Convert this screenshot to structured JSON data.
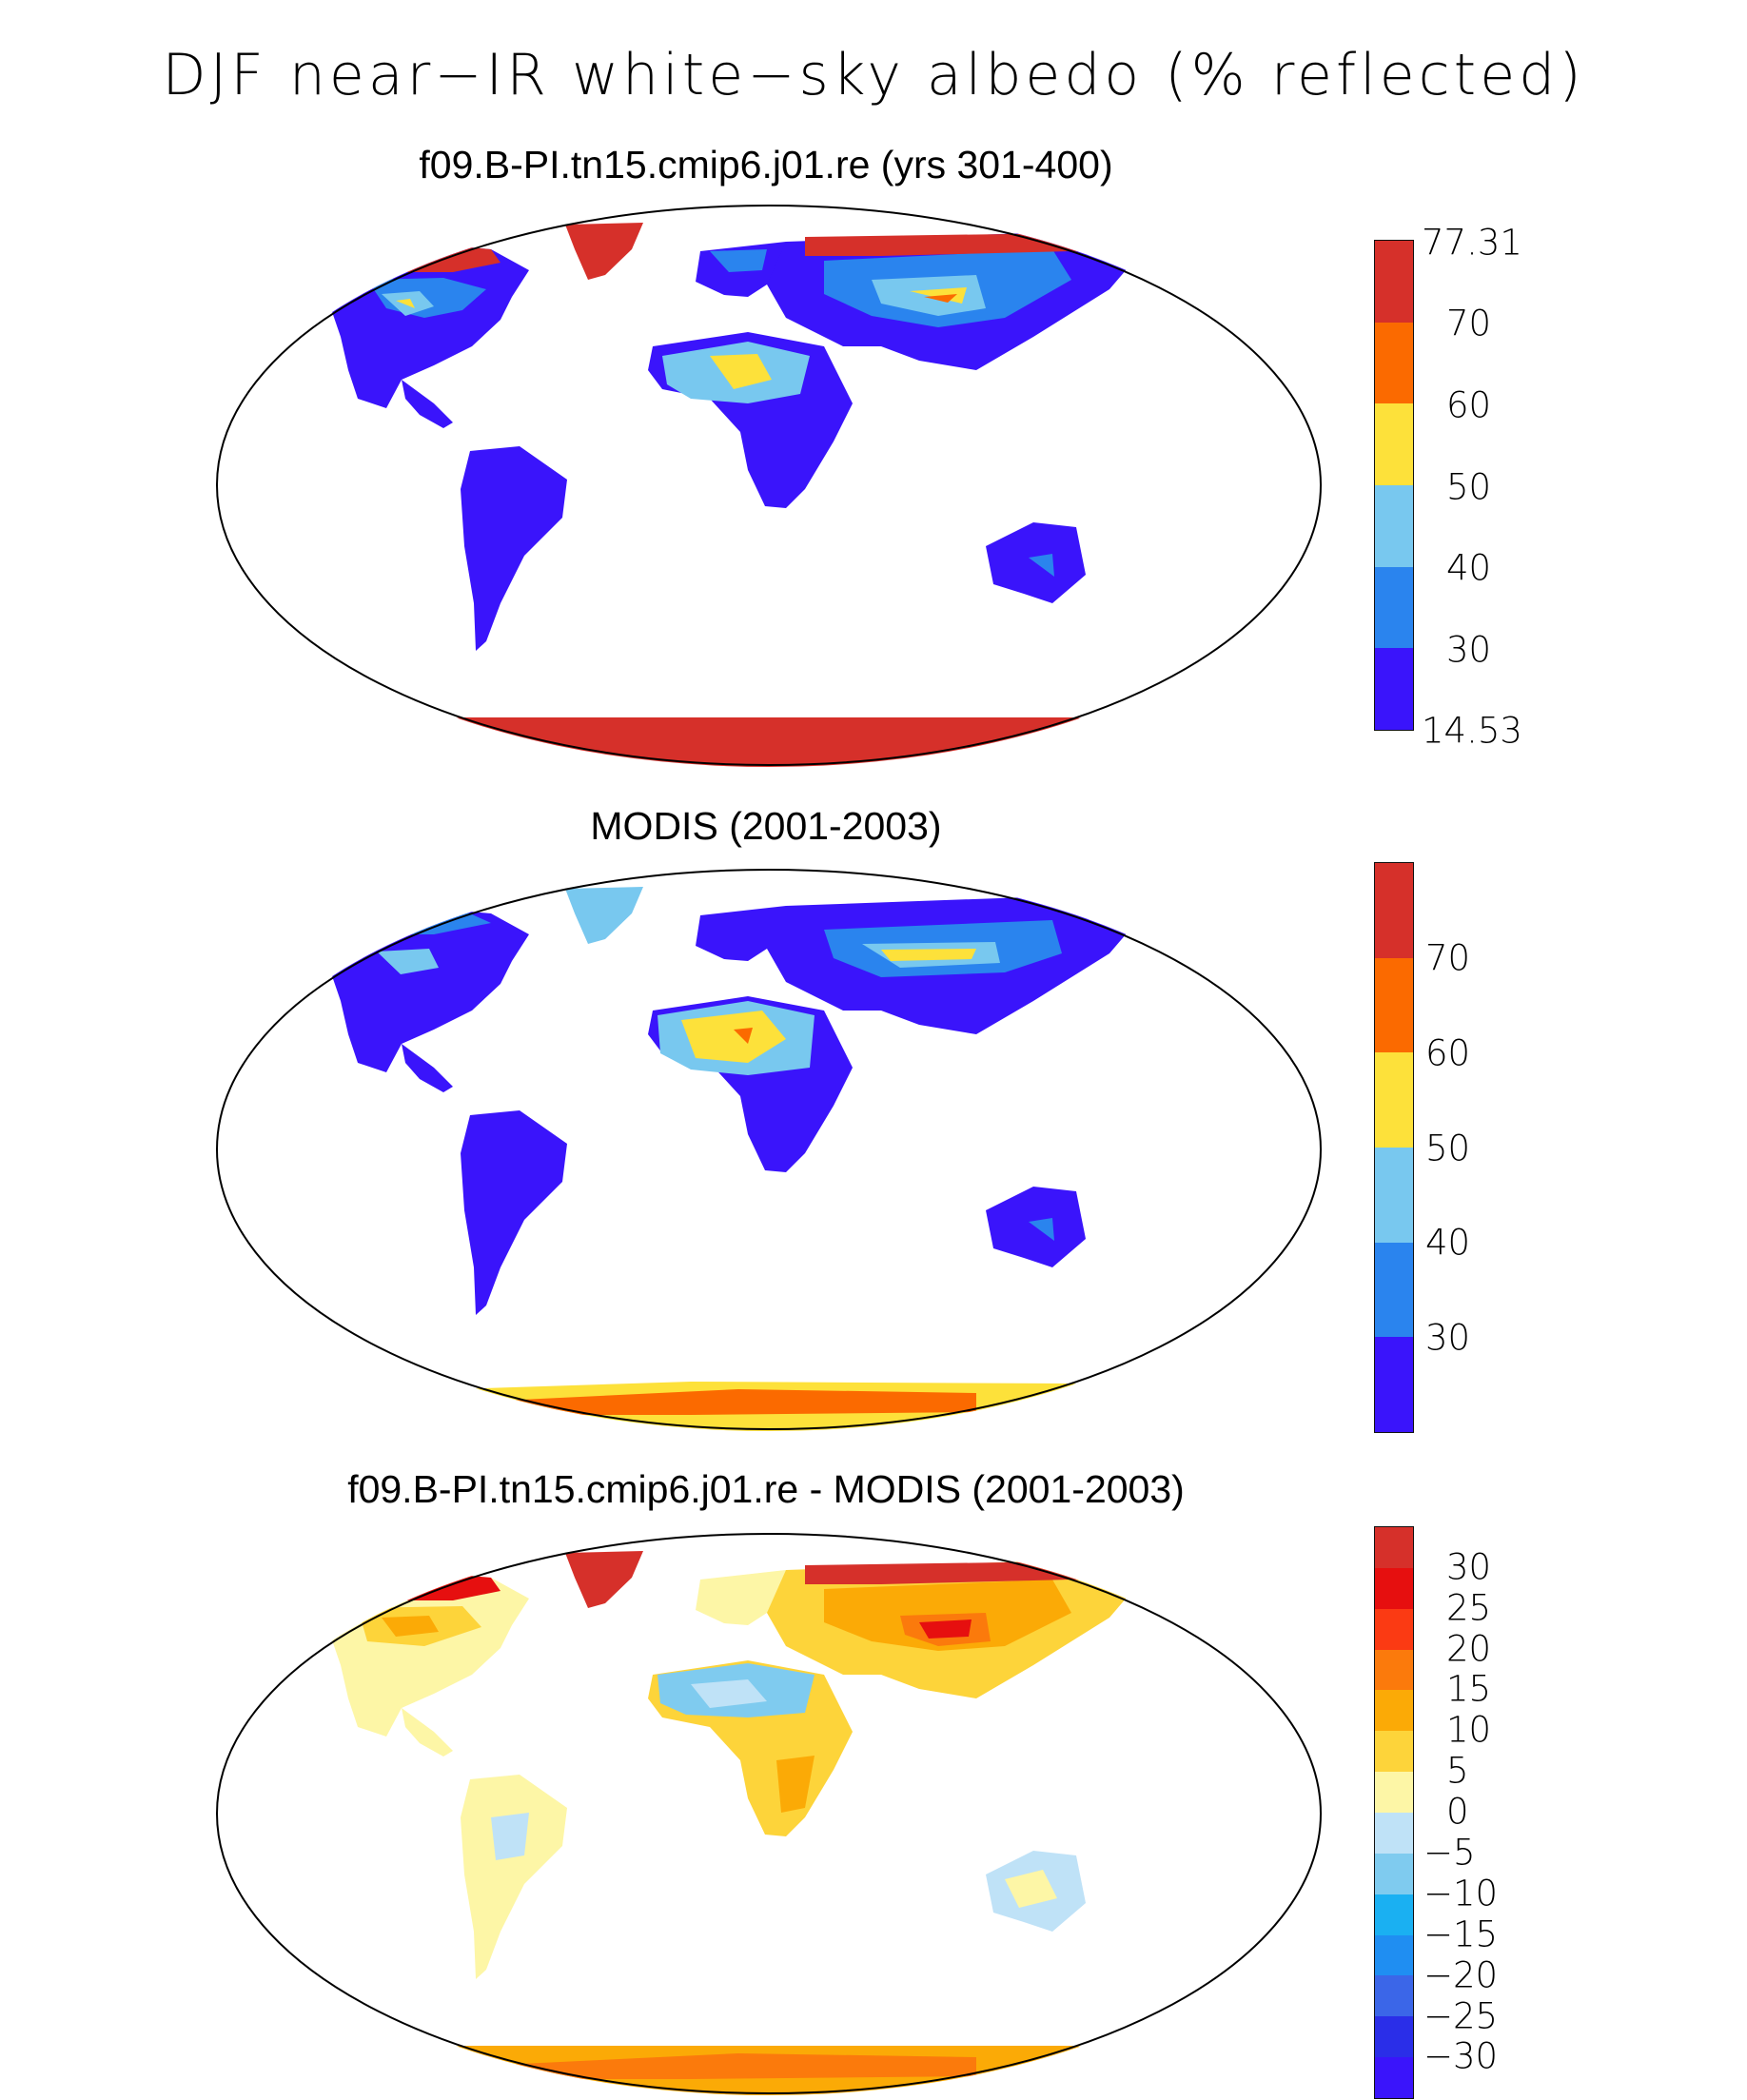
{
  "title": "DJF near−IR white−sky albedo (% reflected)",
  "panels": [
    {
      "title": "f09.B-PI.tn15.cmip6.j01.re (yrs 301-400)",
      "colorbar": {
        "colors": [
          "#d6302a",
          "#fb6a00",
          "#fde13a",
          "#78c8ef",
          "#2a84ee",
          "#3a14fb"
        ],
        "labels": [
          "77.31",
          "70",
          "60",
          "50",
          "40",
          "30",
          "14.53"
        ]
      }
    },
    {
      "title": "MODIS (2001-2003)",
      "colorbar": {
        "colors": [
          "#d6302a",
          "#fb6a00",
          "#fde13a",
          "#78c8ef",
          "#2a84ee",
          "#3a14fb"
        ],
        "labels": [
          "70",
          "60",
          "50",
          "40",
          "30"
        ]
      }
    },
    {
      "title": "f09.B-PI.tn15.cmip6.j01.re - MODIS (2001-2003)",
      "colorbar": {
        "colors": [
          "#d6302a",
          "#e60f0f",
          "#fb3a13",
          "#fb7a0c",
          "#fbaa06",
          "#fdd43a",
          "#fdf6a6",
          "#bfe2f7",
          "#7fcbef",
          "#1ab0f2",
          "#1f8ef2",
          "#3b66e8",
          "#2a2ee8",
          "#3a14fb"
        ],
        "labels": [
          "30",
          "25",
          "20",
          "15",
          "10",
          "5",
          "0",
          "−5",
          "−10",
          "−15",
          "−20",
          "−25",
          "−30"
        ]
      }
    }
  ]
}
